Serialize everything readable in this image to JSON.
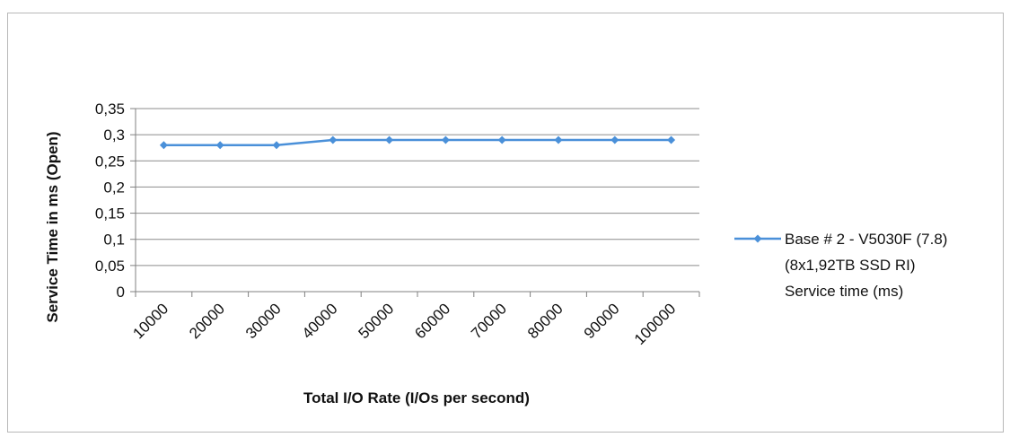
{
  "chart_data": {
    "type": "line",
    "title": "",
    "xlabel": "Total I/O Rate (I/Os per second)",
    "ylabel": "Service Time in ms (Open)",
    "categories": [
      "10000",
      "20000",
      "30000",
      "40000",
      "50000",
      "60000",
      "70000",
      "80000",
      "90000",
      "100000"
    ],
    "y_ticks": [
      "0",
      "0,05",
      "0,1",
      "0,15",
      "0,2",
      "0,25",
      "0,3",
      "0,35"
    ],
    "ylim": [
      0,
      0.35
    ],
    "grid": true,
    "legend_position": "right",
    "series": [
      {
        "name": "Base # 2 - V5030F (7.8) (8x1,92TB SSD RI) Service time (ms)",
        "name_lines": [
          "Base # 2 - V5030F (7.8)",
          "(8x1,92TB SSD RI)",
          "Service time (ms)"
        ],
        "values": [
          0.28,
          0.28,
          0.28,
          0.29,
          0.29,
          0.29,
          0.29,
          0.29,
          0.29,
          0.29
        ],
        "color": "#4a90d9"
      }
    ]
  }
}
